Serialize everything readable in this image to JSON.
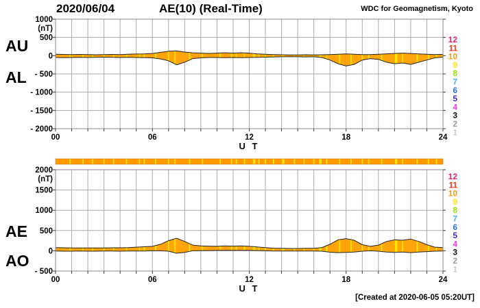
{
  "header": {
    "date": "2020/06/04",
    "title": "AE(10) (Real-Time)",
    "source": "WDC for Geomagnetism, Kyoto"
  },
  "footer": {
    "created": "[Created at 2020-06-05 05:20UT]"
  },
  "colors": {
    "trace_fill": "#FFA40A",
    "trace_outline": "#222222",
    "grid": "#AAAAAA",
    "border": "#888888",
    "tick": "#333333",
    "bar_orange": "#FF9900",
    "bar_yellow": "#FFE800",
    "text": "#000000"
  },
  "chart_data": {
    "type": "area",
    "title": "AE(10) (Real-Time)",
    "date": "2020/06/04",
    "x_label": "U T",
    "x_range": [
      0,
      24
    ],
    "x_step_hours": 0.5,
    "x_tick_labels": [
      "00",
      "06",
      "12",
      "18",
      "24"
    ],
    "x_tick_hours": [
      0,
      6,
      12,
      18,
      24
    ],
    "grid": "both",
    "panels": [
      {
        "name": "AU-AL",
        "unit": "(nT)",
        "ylim": [
          -2000,
          1000
        ],
        "ytick_step": 500,
        "left_labels": [
          "AU",
          "AL"
        ],
        "series": [
          {
            "name": "AU",
            "values": [
              40,
              35,
              30,
              35,
              30,
              25,
              30,
              35,
              30,
              40,
              45,
              50,
              60,
              90,
              120,
              130,
              100,
              80,
              70,
              60,
              70,
              80,
              70,
              80,
              70,
              50,
              40,
              30,
              25,
              20,
              20,
              25,
              20,
              25,
              30,
              40,
              50,
              40,
              30,
              30,
              40,
              50,
              60,
              70,
              60,
              50,
              40,
              30,
              35
            ]
          },
          {
            "name": "AL",
            "values": [
              -50,
              -55,
              -50,
              -45,
              -50,
              -45,
              -40,
              -45,
              -50,
              -45,
              -50,
              -55,
              -60,
              -90,
              -140,
              -250,
              -180,
              -80,
              -60,
              -50,
              -50,
              -55,
              -50,
              -55,
              -50,
              -45,
              -40,
              -35,
              -30,
              -30,
              -30,
              -35,
              -30,
              -50,
              -120,
              -220,
              -280,
              -240,
              -120,
              -80,
              -100,
              -180,
              -220,
              -200,
              -240,
              -180,
              -120,
              -60,
              -40
            ]
          }
        ]
      },
      {
        "name": "AE-AO",
        "unit": "(nT)",
        "ylim": [
          -500,
          2000
        ],
        "ytick_step": 500,
        "left_labels": [
          "AE",
          "AO"
        ],
        "series": [
          {
            "name": "AE",
            "values": [
              80,
              75,
              70,
              70,
              70,
              70,
              70,
              75,
              75,
              80,
              90,
              100,
              110,
              160,
              250,
              310,
              230,
              140,
              120,
              115,
              110,
              120,
              115,
              120,
              110,
              95,
              80,
              65,
              60,
              55,
              55,
              60,
              60,
              80,
              160,
              270,
              300,
              260,
              150,
              110,
              140,
              230,
              270,
              260,
              290,
              230,
              150,
              90,
              80
            ]
          },
          {
            "name": "AO",
            "values": [
              -5,
              -10,
              -10,
              -5,
              -10,
              -10,
              -5,
              -5,
              -10,
              -5,
              -5,
              -5,
              0,
              0,
              -10,
              -60,
              -40,
              0,
              5,
              5,
              10,
              10,
              10,
              10,
              10,
              5,
              0,
              -5,
              -5,
              -5,
              -5,
              -5,
              -5,
              -10,
              -35,
              -45,
              -40,
              -30,
              -10,
              0,
              -10,
              -30,
              -40,
              -30,
              -45,
              -30,
              -20,
              -10,
              -5
            ]
          }
        ]
      }
    ],
    "station_bar": {
      "stations": 10,
      "color_hex": "#FF9900",
      "yellow_marks_hours": [
        [
          0.9,
          0.08
        ],
        [
          1.7,
          0.08
        ],
        [
          2.3,
          0.08
        ],
        [
          3.0,
          0.08
        ],
        [
          3.6,
          0.08
        ],
        [
          4.4,
          0.08
        ],
        [
          5.2,
          0.08
        ],
        [
          5.5,
          0.08
        ],
        [
          6.2,
          0.08
        ],
        [
          7.0,
          0.08
        ],
        [
          7.4,
          0.08
        ],
        [
          8.3,
          0.08
        ],
        [
          9.1,
          0.08
        ],
        [
          10.2,
          0.08
        ],
        [
          10.9,
          0.08
        ],
        [
          11.2,
          0.08
        ],
        [
          11.7,
          0.08
        ],
        [
          12.3,
          0.15
        ],
        [
          12.6,
          0.08
        ],
        [
          13.0,
          0.08
        ],
        [
          13.5,
          0.08
        ],
        [
          14.1,
          0.15
        ],
        [
          14.8,
          0.08
        ],
        [
          15.4,
          0.08
        ],
        [
          16.0,
          0.08
        ],
        [
          16.4,
          0.15
        ],
        [
          16.8,
          0.08
        ],
        [
          17.6,
          0.08
        ],
        [
          18.3,
          0.08
        ],
        [
          19.0,
          0.08
        ],
        [
          19.4,
          0.08
        ],
        [
          20.2,
          0.08
        ],
        [
          21.1,
          0.15
        ],
        [
          21.5,
          0.08
        ],
        [
          22.4,
          0.08
        ],
        [
          23.1,
          0.08
        ],
        [
          23.6,
          0.08
        ]
      ]
    },
    "legend_station_counts": {
      "values": [
        12,
        11,
        10,
        9,
        8,
        7,
        6,
        5,
        4,
        3,
        2,
        1
      ],
      "colors": [
        "#E62078",
        "#FF3318",
        "#FF9900",
        "#FFE500",
        "#99E800",
        "#4FA8FF",
        "#2E6FE8",
        "#4423E8",
        "#EE3CEE",
        "#111111",
        "#999999",
        "#CCCCCC"
      ]
    }
  }
}
